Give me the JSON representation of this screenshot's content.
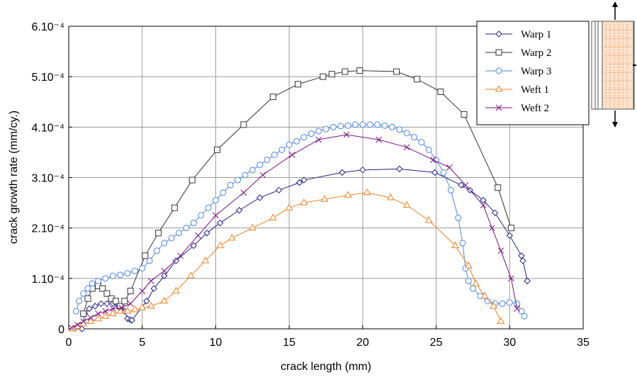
{
  "chart_data": {
    "type": "line",
    "x_label": "crack length (mm)",
    "y_label": "crack growth rate (mm/cy.)",
    "xlim": [
      0,
      35
    ],
    "xticks": [
      0,
      5,
      10,
      15,
      20,
      25,
      30,
      35
    ],
    "ylim": [
      0,
      0.0006
    ],
    "yticks": [
      0,
      {
        "value": 0.0001,
        "label": "1.10⁻⁴"
      },
      {
        "value": 0.0002,
        "label": "2.10⁻⁴"
      },
      {
        "value": 0.0003,
        "label": "3.10⁻⁴"
      },
      {
        "value": 0.0004,
        "label": "4.10⁻⁴"
      },
      {
        "value": 0.0005,
        "label": "5.10⁻⁴"
      },
      {
        "value": 0.0006,
        "label": "6.10⁻⁴"
      }
    ],
    "grid": true,
    "legend": "upper right",
    "series": [
      {
        "name": "Warp 1",
        "color": "#1f1f8a",
        "marker": "diamond",
        "x": [
          0.9,
          1.1,
          1.4,
          1.8,
          2.2,
          2.6,
          3.0,
          3.4,
          3.8,
          4.0,
          4.2,
          4.3,
          5.3,
          5.8,
          6.5,
          7.3,
          8.5,
          9.4,
          10.3,
          11.6,
          13.0,
          14.3,
          15.7,
          16.0,
          18.6,
          20.0,
          22.5,
          24.9,
          26.7,
          27.3,
          28.2,
          29.0,
          30.0,
          30.8,
          30.9,
          31.2
        ],
        "values": [
          0.0,
          3e-05,
          4e-05,
          4.5e-05,
          5e-05,
          5e-05,
          5e-05,
          4.5e-05,
          3.5e-05,
          2e-05,
          1.8e-05,
          1.7e-05,
          5.5e-05,
          8e-05,
          0.000105,
          0.000135,
          0.000165,
          0.00019,
          0.00021,
          0.000235,
          0.00026,
          0.000275,
          0.00029,
          0.000295,
          0.00031,
          0.000315,
          0.000317,
          0.00031,
          0.000285,
          0.000275,
          0.000255,
          0.00023,
          0.000185,
          0.000145,
          0.000135,
          9.5e-05
        ]
      },
      {
        "name": "Warp 2",
        "color": "#333333",
        "marker": "square",
        "x": [
          1.0,
          1.3,
          1.6,
          2.0,
          2.3,
          2.6,
          2.9,
          3.2,
          3.5,
          3.8,
          4.2,
          5.2,
          6.1,
          7.2,
          8.4,
          10.1,
          11.9,
          13.9,
          15.6,
          17.3,
          17.9,
          18.8,
          19.8,
          22.3,
          23.7,
          25.3,
          26.9,
          29.2,
          30.1
        ],
        "values": [
          3e-05,
          6e-05,
          8e-05,
          8.5e-05,
          8e-05,
          7e-05,
          6e-05,
          5.5e-05,
          4.5e-05,
          5.5e-05,
          7.5e-05,
          0.000145,
          0.00019,
          0.00024,
          0.000295,
          0.000355,
          0.000405,
          0.00046,
          0.000485,
          0.0005,
          0.000505,
          0.00051,
          0.000512,
          0.00051,
          0.000495,
          0.00047,
          0.000425,
          0.00028,
          0.0002
        ]
      },
      {
        "name": "Warp 3",
        "color": "#4a86e8",
        "marker": "circle",
        "x": [
          0.5,
          0.7,
          1.0,
          1.3,
          1.6,
          2.0,
          2.5,
          3.0,
          3.5,
          4.0,
          4.5,
          5.0,
          5.5,
          6.0,
          6.5,
          7.0,
          7.5,
          8.0,
          8.5,
          9.0,
          9.5,
          10.0,
          10.5,
          11.0,
          11.5,
          12.0,
          12.5,
          13.0,
          13.5,
          14.0,
          14.5,
          15.0,
          15.5,
          16.0,
          16.5,
          17.0,
          17.5,
          18.0,
          18.5,
          19.0,
          19.5,
          20.0,
          20.5,
          21.0,
          21.5,
          22.0,
          22.5,
          23.0,
          23.5,
          24.0,
          24.5,
          25.0,
          25.5,
          26.0,
          26.5,
          26.8,
          27.0,
          27.2,
          27.5,
          28.0,
          28.5,
          29.0,
          29.5,
          30.0,
          30.5,
          30.8,
          31.0
        ],
        "values": [
          3.5e-05,
          5.5e-05,
          7e-05,
          8e-05,
          9e-05,
          9.5e-05,
          0.0001,
          0.000105,
          0.000107,
          0.00011,
          0.000115,
          0.00012,
          0.000135,
          0.000155,
          0.00017,
          0.00018,
          0.00019,
          0.0002,
          0.00021,
          0.000225,
          0.00024,
          0.000255,
          0.00027,
          0.000285,
          0.000295,
          0.000305,
          0.000315,
          0.000325,
          0.000335,
          0.000345,
          0.000355,
          0.000365,
          0.000372,
          0.00038,
          0.000387,
          0.000392,
          0.000396,
          0.0004,
          0.000402,
          0.000403,
          0.000405,
          0.000405,
          0.000405,
          0.000405,
          0.000403,
          0.0004,
          0.000395,
          0.000388,
          0.00038,
          0.00037,
          0.000355,
          0.000335,
          0.00031,
          0.000275,
          0.00022,
          0.00017,
          0.00012,
          9.5e-05,
          8e-05,
          6.5e-05,
          5.5e-05,
          5e-05,
          5e-05,
          5.2e-05,
          5e-05,
          3.5e-05,
          2.5e-05
        ]
      },
      {
        "name": "Weft 1",
        "color": "#f08020",
        "marker": "triangle",
        "x": [
          0.3,
          0.6,
          1.0,
          1.5,
          2.0,
          2.5,
          3.0,
          3.5,
          4.0,
          4.5,
          5.0,
          5.6,
          6.5,
          7.3,
          8.3,
          9.3,
          10.3,
          11.1,
          12.5,
          13.9,
          15.0,
          16.0,
          17.4,
          19.0,
          20.3,
          21.9,
          23.0,
          24.5,
          26.3,
          27.2,
          27.7,
          28.3,
          28.9,
          29.4
        ],
        "values": [
          0.0,
          5e-06,
          1e-05,
          1.5e-05,
          2e-05,
          2.5e-05,
          3e-05,
          3.5e-05,
          3.5e-05,
          3.8e-05,
          4.2e-05,
          4.5e-05,
          5.5e-05,
          7.5e-05,
          0.000105,
          0.000135,
          0.000165,
          0.00018,
          0.0002,
          0.00022,
          0.00024,
          0.00025,
          0.000257,
          0.000265,
          0.00027,
          0.00026,
          0.000245,
          0.000215,
          0.000165,
          0.000125,
          9e-05,
          6.5e-05,
          4.5e-05,
          1.5e-05
        ]
      },
      {
        "name": "Weft 2",
        "color": "#7b1080",
        "marker": "x",
        "x": [
          0.2,
          0.6,
          1.0,
          1.5,
          2.0,
          2.5,
          3.0,
          3.6,
          4.2,
          5.0,
          5.6,
          6.5,
          7.6,
          8.8,
          10.0,
          11.9,
          13.2,
          15.2,
          17.0,
          18.9,
          21.1,
          23.0,
          24.8,
          25.9,
          27.0,
          28.2,
          28.8,
          29.4,
          30.1,
          30.5
        ],
        "values": [
          2e-06,
          8e-06,
          1.5e-05,
          2.2e-05,
          3e-05,
          3.5e-05,
          4e-05,
          4.2e-05,
          5e-05,
          7.5e-05,
          9.5e-05,
          0.000115,
          0.000145,
          0.000185,
          0.000225,
          0.00027,
          0.000305,
          0.000345,
          0.000375,
          0.000385,
          0.000375,
          0.00036,
          0.000335,
          0.00032,
          0.000285,
          0.000245,
          0.0002,
          0.000155,
          0.0001,
          4e-05
        ]
      }
    ]
  }
}
